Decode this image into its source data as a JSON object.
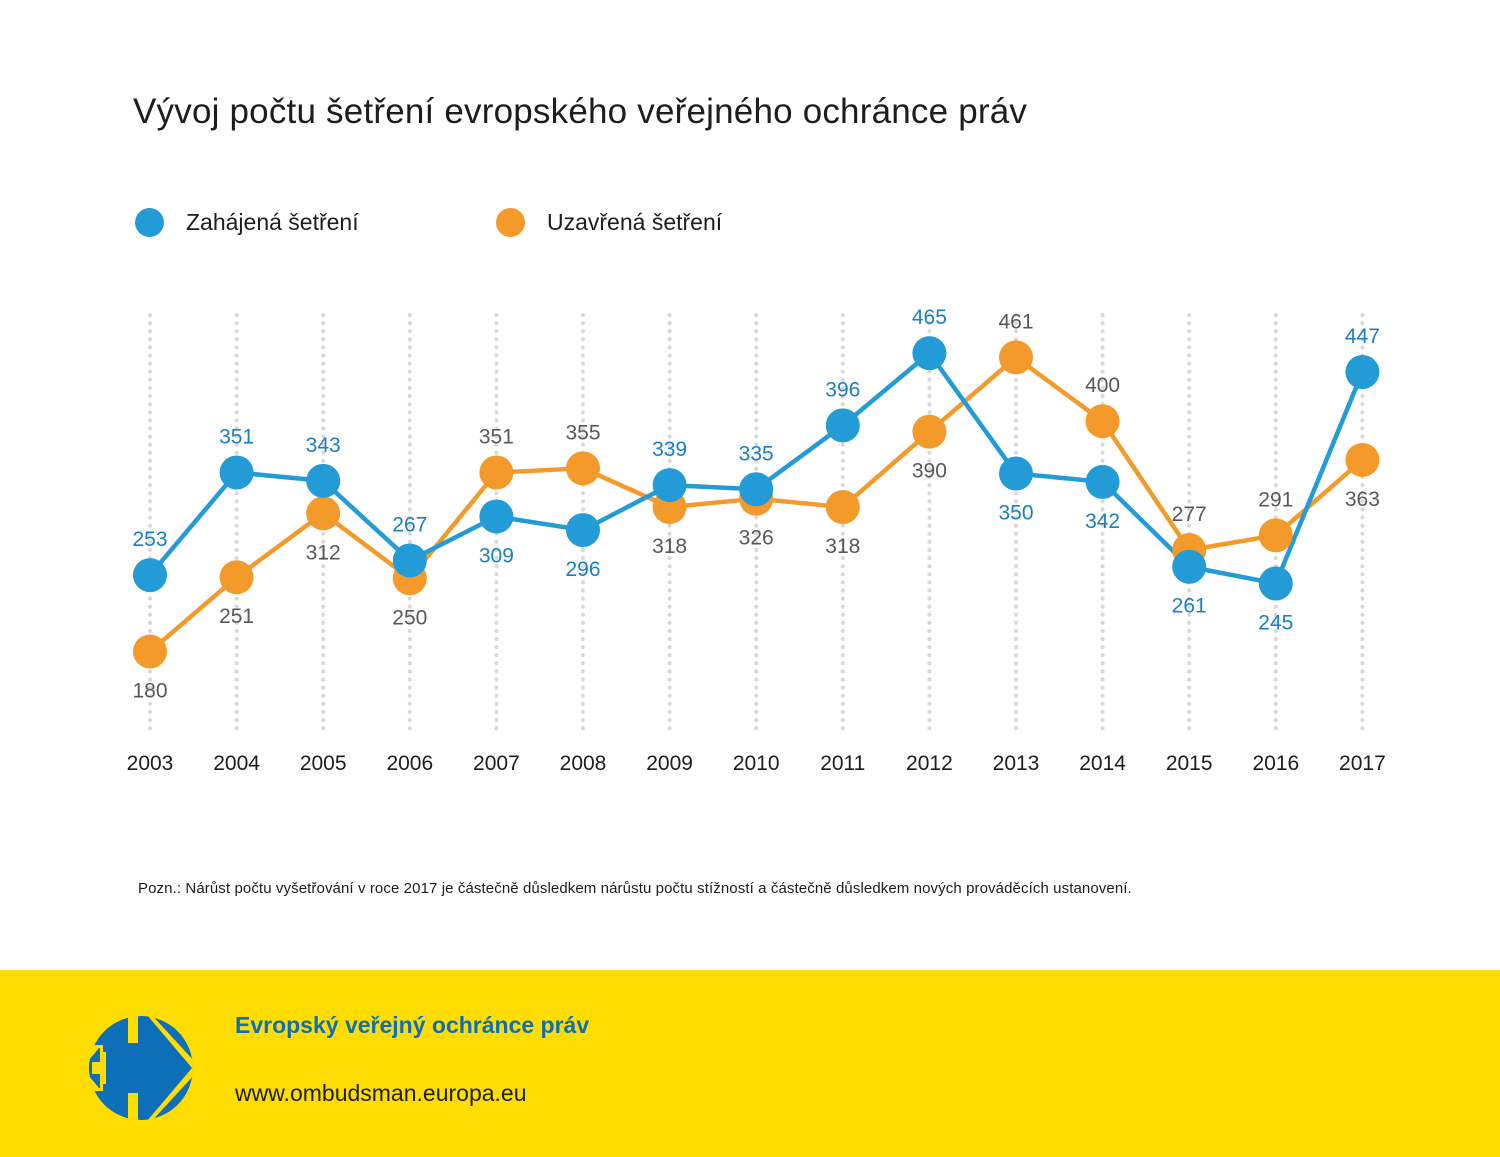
{
  "chart_data": {
    "type": "line",
    "title": "Vývoj počtu šetření evropského veřejného ochránce práv",
    "xlabel": "",
    "ylabel": "",
    "categories": [
      "2003",
      "2004",
      "2005",
      "2006",
      "2007",
      "2008",
      "2009",
      "2010",
      "2011",
      "2012",
      "2013",
      "2014",
      "2015",
      "2016",
      "2017"
    ],
    "series": [
      {
        "name": "Zahájená šetření",
        "color": "#229bd6",
        "label_color": "#1a7fc1",
        "values": [
          253,
          351,
          343,
          267,
          309,
          296,
          339,
          335,
          396,
          465,
          350,
          342,
          261,
          245,
          447
        ],
        "label_positions": [
          "above",
          "above",
          "above",
          "above",
          "below",
          "below",
          "above",
          "above",
          "above",
          "above",
          "below",
          "below",
          "below",
          "below",
          "above"
        ]
      },
      {
        "name": "Uzavřená šetření",
        "color": "#f39a2a",
        "label_color": "#58585a",
        "values": [
          180,
          251,
          312,
          250,
          351,
          355,
          318,
          326,
          318,
          390,
          461,
          400,
          277,
          291,
          363
        ],
        "label_positions": [
          "below",
          "below",
          "below",
          "below",
          "above",
          "above",
          "below",
          "below",
          "below",
          "below",
          "above",
          "above",
          "above",
          "above",
          "below"
        ]
      }
    ],
    "ylim": [
      0,
      500
    ],
    "grid": "vertical-dotted",
    "legend": "top-left",
    "note": "Pozn.: Nárůst počtu vyšetřování v roce 2017 je částečně důsledkem nárůstu počtu stížností a částečně důsledkem nových prováděcích ustanovení."
  },
  "footer": {
    "organization": "Evropský veřejný ochránce práv",
    "url": "www.ombudsman.europa.eu",
    "background_color": "#ffdd00",
    "logo_color": "#0d6fb8"
  }
}
